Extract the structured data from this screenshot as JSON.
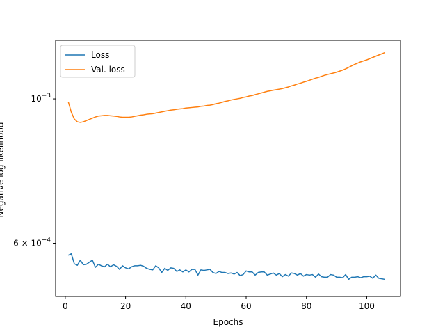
{
  "chart_data": {
    "type": "line",
    "title": "",
    "xlabel": "Epochs",
    "ylabel": "Negative log likelihood",
    "yscale": "log",
    "xlim": [
      -3.2,
      111.2
    ],
    "ylim": [
      0.000497,
      0.00123
    ],
    "grid": false,
    "legend_position": "top-left",
    "x_ticks": [
      0,
      20,
      40,
      60,
      80,
      100
    ],
    "x_tick_labels": [
      "0",
      "20",
      "40",
      "60",
      "80",
      "100"
    ],
    "y_ticks": [
      0.001,
      0.0006
    ],
    "y_tick_labels": [
      {
        "base": "10",
        "exponent": "−3"
      },
      {
        "prefix": "6 × ",
        "base": "10",
        "exponent": "−4"
      }
    ],
    "series": [
      {
        "name": "Loss",
        "color": "#1f77b4",
        "x": [
          1,
          2,
          3,
          4,
          5,
          6,
          7,
          8,
          9,
          10,
          11,
          12,
          13,
          14,
          15,
          16,
          17,
          18,
          19,
          20,
          21,
          22,
          23,
          24,
          25,
          26,
          27,
          28,
          29,
          30,
          31,
          32,
          33,
          34,
          35,
          36,
          37,
          38,
          39,
          40,
          41,
          42,
          43,
          44,
          45,
          46,
          47,
          48,
          49,
          50,
          51,
          52,
          53,
          54,
          55,
          56,
          57,
          58,
          59,
          60,
          61,
          62,
          63,
          64,
          65,
          66,
          67,
          68,
          69,
          70,
          71,
          72,
          73,
          74,
          75,
          76,
          77,
          78,
          79,
          80,
          81,
          82,
          83,
          84,
          85,
          86,
          87,
          88,
          89,
          90,
          91,
          92,
          93,
          94,
          95,
          96,
          97,
          98,
          99,
          100,
          101,
          102,
          103,
          104,
          105,
          106
        ],
        "values": [
          0.000575,
          0.000578,
          0.000558,
          0.000555,
          0.000565,
          0.000556,
          0.000557,
          0.000561,
          0.000565,
          0.000551,
          0.000557,
          0.000554,
          0.000552,
          0.000557,
          0.000552,
          0.000556,
          0.000553,
          0.000547,
          0.000554,
          0.00055,
          0.000548,
          0.000552,
          0.000554,
          0.000554,
          0.000555,
          0.000553,
          0.000549,
          0.000547,
          0.000546,
          0.000554,
          0.00055,
          0.000541,
          0.000549,
          0.000545,
          0.00055,
          0.000549,
          0.000543,
          0.000546,
          0.000542,
          0.000546,
          0.000542,
          0.000547,
          0.000547,
          0.000536,
          0.000546,
          0.000545,
          0.000546,
          0.000547,
          0.000541,
          0.000539,
          0.000543,
          0.000541,
          0.000541,
          0.000539,
          0.00054,
          0.000538,
          0.000541,
          0.000535,
          0.000537,
          0.000544,
          0.000542,
          0.000542,
          0.000536,
          0.000541,
          0.000542,
          0.000542,
          0.000536,
          0.000538,
          0.00054,
          0.000536,
          0.000539,
          0.000533,
          0.000537,
          0.000534,
          0.00054,
          0.000539,
          0.000536,
          0.000539,
          0.000534,
          0.000537,
          0.000536,
          0.000537,
          0.000532,
          0.000538,
          0.000533,
          0.000532,
          0.000532,
          0.000537,
          0.000536,
          0.000532,
          0.000532,
          0.000531,
          0.000537,
          0.000528,
          0.000532,
          0.000532,
          0.000533,
          0.000531,
          0.000533,
          0.000533,
          0.000534,
          0.00053,
          0.000536,
          0.00053,
          0.000529,
          0.000528
        ]
      },
      {
        "name": "Val. loss",
        "color": "#ff7f0e",
        "x": [
          1,
          2,
          3,
          4,
          5,
          6,
          7,
          8,
          9,
          10,
          11,
          12,
          13,
          14,
          15,
          16,
          17,
          18,
          19,
          20,
          21,
          22,
          23,
          24,
          25,
          26,
          27,
          28,
          29,
          30,
          31,
          32,
          33,
          34,
          35,
          36,
          37,
          38,
          39,
          40,
          41,
          42,
          43,
          44,
          45,
          46,
          47,
          48,
          49,
          50,
          51,
          52,
          53,
          54,
          55,
          56,
          57,
          58,
          59,
          60,
          61,
          62,
          63,
          64,
          65,
          66,
          67,
          68,
          69,
          70,
          71,
          72,
          73,
          74,
          75,
          76,
          77,
          78,
          79,
          80,
          81,
          82,
          83,
          84,
          85,
          86,
          87,
          88,
          89,
          90,
          91,
          92,
          93,
          94,
          95,
          96,
          97,
          98,
          99,
          100,
          101,
          102,
          103,
          104,
          105,
          106
        ],
        "values": [
          0.00099,
          0.000954,
          0.000931,
          0.000922,
          0.00092,
          0.000922,
          0.000926,
          0.00093,
          0.000934,
          0.000938,
          0.000941,
          0.000942,
          0.000943,
          0.000943,
          0.000942,
          0.000941,
          0.00094,
          0.000938,
          0.000937,
          0.000937,
          0.000937,
          0.000938,
          0.00094,
          0.000942,
          0.000944,
          0.000945,
          0.000947,
          0.000948,
          0.000949,
          0.000951,
          0.000953,
          0.000955,
          0.000957,
          0.000959,
          0.000961,
          0.000962,
          0.000964,
          0.000965,
          0.000966,
          0.000968,
          0.000969,
          0.00097,
          0.000971,
          0.000972,
          0.000974,
          0.000975,
          0.000977,
          0.000978,
          0.00098,
          0.000983,
          0.000985,
          0.000988,
          0.000991,
          0.000993,
          0.000996,
          0.000998,
          0.001,
          0.001002,
          0.001005,
          0.001007,
          0.00101,
          0.001012,
          0.001015,
          0.001018,
          0.001021,
          0.001024,
          0.001027,
          0.001029,
          0.001031,
          0.001033,
          0.001035,
          0.001037,
          0.00104,
          0.001043,
          0.001047,
          0.00105,
          0.001054,
          0.001057,
          0.001061,
          0.001064,
          0.001068,
          0.001072,
          0.001076,
          0.001079,
          0.001083,
          0.001087,
          0.00109,
          0.001093,
          0.001096,
          0.001099,
          0.001103,
          0.001107,
          0.001112,
          0.001118,
          0.001124,
          0.00113,
          0.001135,
          0.00114,
          0.001144,
          0.001148,
          0.001153,
          0.001158,
          0.001163,
          0.001168,
          0.001173,
          0.001178
        ]
      }
    ]
  }
}
